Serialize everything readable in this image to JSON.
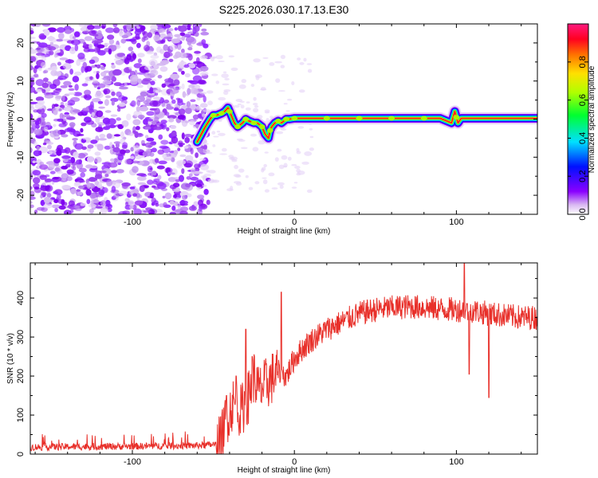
{
  "title": "S225.2026.030.17.13.E30",
  "chart_data": [
    {
      "type": "heatmap",
      "name": "spectrogram",
      "xlabel": "Height of straight line (km)",
      "ylabel": "Frequency (Hz)",
      "xlim": [
        -163,
        150
      ],
      "ylim": [
        -25,
        25
      ],
      "x_ticks": [
        -100,
        0,
        100
      ],
      "x_tick_labels": [
        "-100",
        "0",
        "100"
      ],
      "y_ticks": [
        -20,
        -10,
        0,
        10,
        20
      ],
      "y_tick_labels": [
        "-20",
        "-10",
        "0",
        "10",
        "20"
      ],
      "noise_region_x": [
        -163,
        -58
      ],
      "signal_trace": {
        "x": [
          -60,
          -55,
          -52,
          -50,
          -48,
          -45,
          -43,
          -41,
          -39,
          -37,
          -35,
          -32,
          -30,
          -28,
          -25,
          -23,
          -20,
          -18,
          -16,
          -15,
          -14,
          -12,
          -10,
          -8,
          -5,
          -3,
          0,
          10,
          30,
          60,
          90,
          97,
          99,
          101,
          103,
          110,
          130,
          150
        ],
        "y": [
          -6,
          -2,
          0,
          1,
          1,
          1.5,
          2,
          3,
          1,
          -1,
          -2,
          -1,
          0,
          -0.5,
          -1,
          -1,
          -2,
          -4,
          -5,
          -3,
          -2,
          -1,
          -0.5,
          -1,
          0,
          0,
          0.2,
          0.2,
          0.2,
          0.2,
          0.2,
          -1,
          2,
          -1,
          0.2,
          0.2,
          0.2,
          0.2
        ]
      },
      "colorbar": {
        "label": "Normalized spectral amplitude",
        "range": [
          0,
          1
        ],
        "ticks": [
          0.0,
          0.2,
          0.4,
          0.6,
          0.8
        ],
        "tick_labels": [
          "0.0",
          "0.2",
          "0.4",
          "0.6",
          "0.8"
        ]
      }
    },
    {
      "type": "line",
      "name": "snr",
      "xlabel": "Height of straight line (km)",
      "ylabel": "SNR (10 * v/v)",
      "xlim": [
        -163,
        150
      ],
      "ylim": [
        0,
        490
      ],
      "x_ticks": [
        -100,
        0,
        100
      ],
      "x_tick_labels": [
        "-100",
        "0",
        "100"
      ],
      "y_ticks": [
        0,
        100,
        200,
        300,
        400
      ],
      "y_tick_labels": [
        "0",
        "100",
        "200",
        "300",
        "400"
      ],
      "color": "#e8302a",
      "trend": {
        "x": [
          -163,
          -100,
          -60,
          -47,
          -45,
          -42,
          -38,
          -33,
          -28,
          -25,
          -22,
          -15,
          -10,
          -5,
          0,
          5,
          10,
          20,
          30,
          40,
          50,
          60,
          70,
          80,
          90,
          100,
          110,
          120,
          130,
          140,
          150
        ],
        "y": [
          18,
          20,
          22,
          25,
          40,
          90,
          130,
          110,
          150,
          200,
          160,
          190,
          210,
          200,
          245,
          270,
          290,
          320,
          340,
          360,
          370,
          375,
          378,
          376,
          372,
          370,
          368,
          360,
          355,
          350,
          350
        ]
      },
      "spikes": [
        {
          "x": -42,
          "y": 150
        },
        {
          "x": -36,
          "y": 200
        },
        {
          "x": -30,
          "y": 320
        },
        {
          "x": -26,
          "y": 250
        },
        {
          "x": -8,
          "y": 415
        },
        {
          "x": 105,
          "y": 490
        },
        {
          "x": 108,
          "y": 205
        },
        {
          "x": 120,
          "y": 145
        }
      ]
    }
  ]
}
